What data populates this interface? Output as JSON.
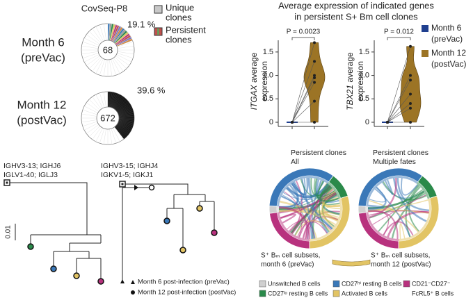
{
  "clone_pies": {
    "type": "pie",
    "title": "CovSeq-P8",
    "legend": [
      {
        "lines": [
          "Unique",
          "clones"
        ],
        "color": "#c8c8c8"
      },
      {
        "lines": [
          "Persistent",
          "clones"
        ],
        "color": "#c0504d"
      }
    ],
    "pies": [
      {
        "label_lines": [
          "Month 6",
          "(preVac)"
        ],
        "center_label": "68",
        "persistent_percent": 19.1,
        "percent_label": "19.1 %",
        "color": "#8a8a8a"
      },
      {
        "label_lines": [
          "Month 12",
          "(postVac)"
        ],
        "center_label": "672",
        "persistent_percent": 39.6,
        "percent_label": "39.6 %",
        "color": "#111111"
      }
    ]
  },
  "expression": {
    "title_lines": [
      "Average expression of indicated genes",
      "in persistent S+ Bm cell clones"
    ],
    "legend": [
      {
        "lines": [
          "Month 6",
          "(preVac)"
        ],
        "color": "#1f3f8f"
      },
      {
        "lines": [
          "Month 12",
          "(postVac)"
        ],
        "color": "#9c7425"
      }
    ],
    "panels": [
      {
        "type": "violin",
        "gene": "ITGAX",
        "label_rest": " average",
        "label_line2": "expression",
        "p_label": "P = 0.0023",
        "ylim": [
          0,
          1.75
        ],
        "yticks": [
          0,
          0.5,
          {
            "value": 1,
            "label": "1.0"
          },
          1.5
        ],
        "series": [
          {
            "values": [
              0,
              0,
              0,
              0,
              0,
              0,
              0
            ]
          },
          {
            "values": [
              1.7,
              1.3,
              1.0,
              0.95,
              0.85,
              0.45,
              0
            ]
          }
        ]
      },
      {
        "type": "violin",
        "gene": "TBX21",
        "label_rest": " average",
        "label_line2": "expression",
        "p_label": "P = 0.012",
        "ylim": [
          0,
          1.75
        ],
        "yticks": [
          0,
          0.5,
          {
            "value": 1,
            "label": "1.0"
          },
          1.5
        ],
        "series": [
          {
            "values": [
              0,
              0,
              0,
              0,
              0,
              0,
              0
            ]
          },
          {
            "values": [
              1.62,
              1.0,
              0.9,
              0.6,
              0.4,
              0.3,
              0
            ]
          }
        ]
      }
    ]
  },
  "trees": {
    "panels": [
      {
        "labels": [
          "IGHV3-13; IGHJ6",
          "IGLV1-40; IGLJ3"
        ]
      },
      {
        "labels": [
          "IGHV3-15; IGHJ4",
          "IGKV1-5; IGKJ1"
        ]
      }
    ],
    "scale_label": "0.01",
    "legend": [
      "Month 6 post-infection (preVac)",
      "Month 12 post-infection (postVac)"
    ]
  },
  "chords": {
    "panels": [
      {
        "title_lines": [
          "Persistent clones",
          "All"
        ]
      },
      {
        "title_lines": [
          "Persistent clones",
          "Multiple fates"
        ]
      }
    ],
    "subset_labels": [
      [
        "S⁺ Bₘ cell subsets,",
        "month 6 (preVac)"
      ],
      [
        "S⁺ Bₘ cell subsets,",
        "month 12 (postVac)"
      ]
    ],
    "legend": [
      {
        "lines": [
          "Unswitched B cells"
        ],
        "color": "#cfcfcf"
      },
      {
        "lines": [
          "CD27ʰⁱ resting B cells"
        ],
        "color": "#3a78b8"
      },
      {
        "lines": [
          "CD21⁻CD27⁻",
          "FcRL5⁺ B cells"
        ],
        "color": "#b8327e"
      },
      {
        "lines": [
          "CD27ˡᵒ resting B cells"
        ],
        "color": "#2a8a4a"
      },
      {
        "lines": [
          "Activated B cells"
        ],
        "color": "#e2c464"
      }
    ]
  }
}
